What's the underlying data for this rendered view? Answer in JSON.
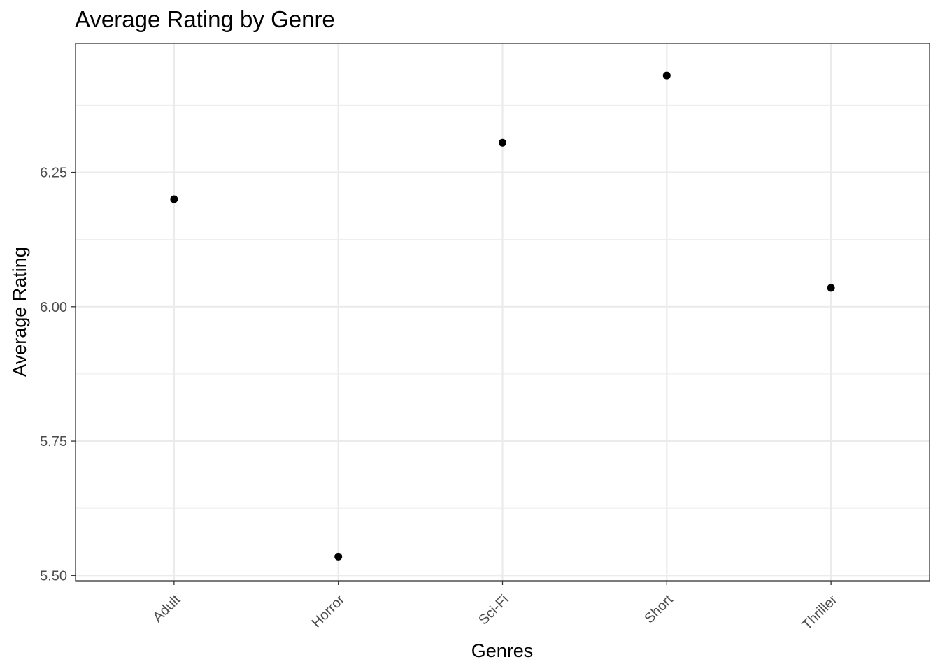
{
  "chart_data": {
    "type": "scatter",
    "title": "Average Rating by Genre",
    "xlabel": "Genres",
    "ylabel": "Average Rating",
    "categories": [
      "Adult",
      "Horror",
      "Sci-Fi",
      "Short",
      "Thriller"
    ],
    "values": [
      6.2,
      5.535,
      6.305,
      6.43,
      6.035
    ],
    "ylim": [
      5.49,
      6.49
    ],
    "yticks": [
      5.5,
      5.75,
      6.0,
      6.25
    ],
    "ytick_labels": [
      "5.50",
      "5.75",
      "6.00",
      "6.25"
    ],
    "grid": true,
    "legend": "none",
    "point_color": "#000000",
    "grid_color": "#ebebeb"
  }
}
